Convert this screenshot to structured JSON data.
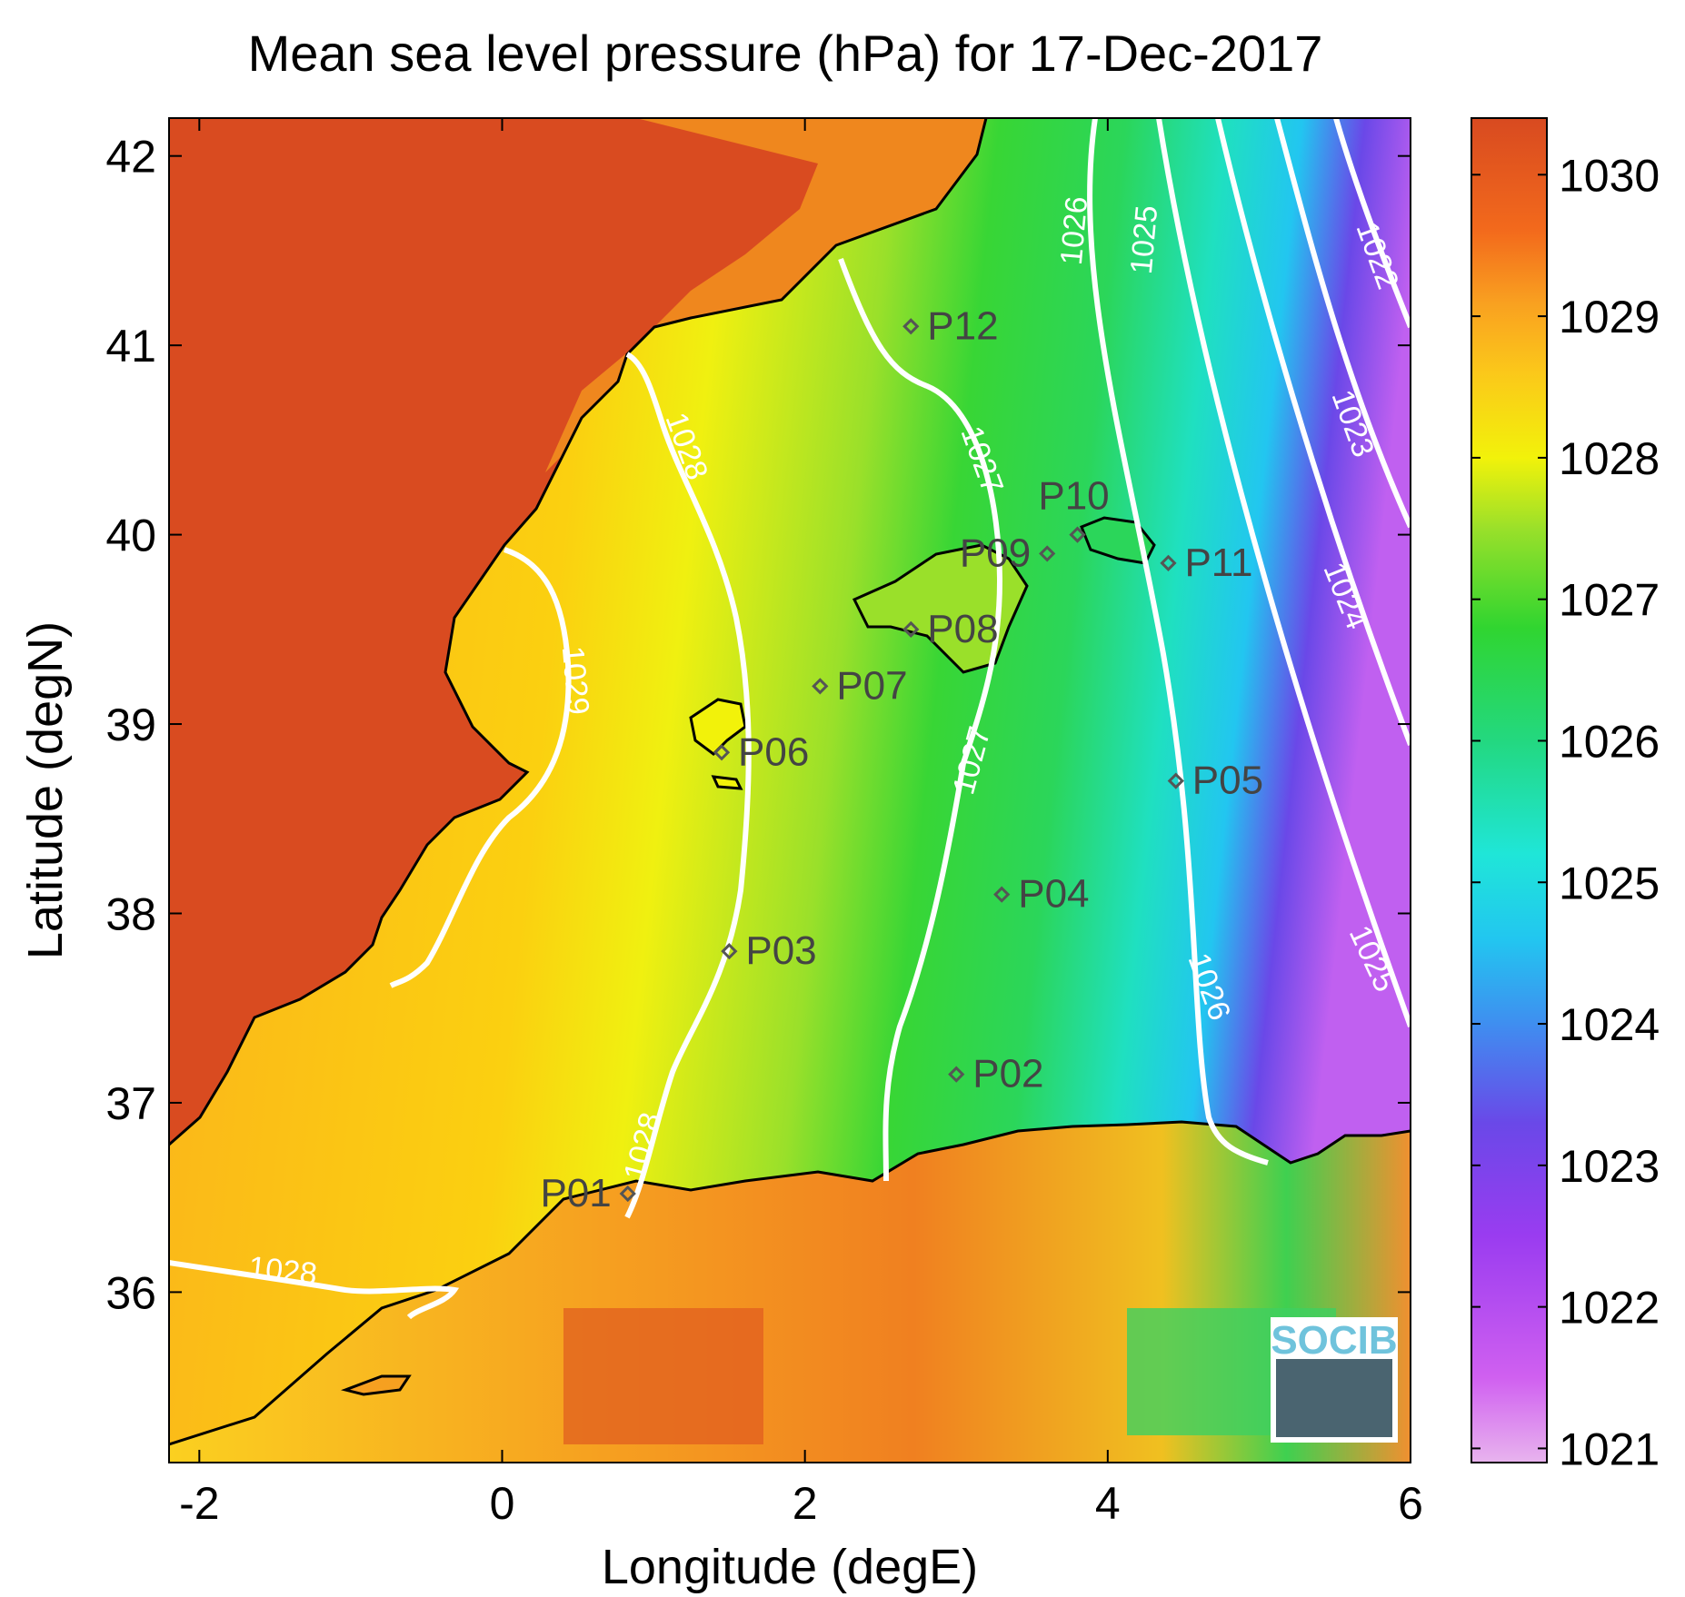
{
  "figure": {
    "title": "Mean sea level pressure (hPa) for 17-Dec-2017",
    "xlabel": "Longitude (degE)",
    "ylabel": "Latitude (degN)",
    "logo_text": "SOCIB"
  },
  "chart_data": {
    "type": "heatmap",
    "title": "Mean sea level pressure (hPa) for 17-Dec-2017",
    "xlabel": "Longitude (degE)",
    "ylabel": "Latitude (degN)",
    "xlim": [
      -2.2,
      6.0
    ],
    "ylim": [
      35.1,
      42.2
    ],
    "x_ticks": [
      -2,
      0,
      2,
      4,
      6
    ],
    "x_tick_labels": [
      "-2",
      "0",
      "2",
      "4",
      "6"
    ],
    "y_ticks": [
      36,
      37,
      38,
      39,
      40,
      41,
      42
    ],
    "y_tick_labels": [
      "36",
      "37",
      "38",
      "39",
      "40",
      "41",
      "42"
    ],
    "colorbar": {
      "range": [
        1020.9,
        1030.4
      ],
      "ticks": [
        1021,
        1022,
        1023,
        1024,
        1025,
        1026,
        1027,
        1028,
        1029,
        1030
      ],
      "tick_labels": [
        "1021",
        "1022",
        "1023",
        "1024",
        "1025",
        "1026",
        "1027",
        "1028",
        "1029",
        "1030"
      ],
      "stops": [
        {
          "value": 1020.9,
          "color": "#e8b4ee"
        },
        {
          "value": 1021.5,
          "color": "#d060f0"
        },
        {
          "value": 1022.5,
          "color": "#9a3cf0"
        },
        {
          "value": 1023.3,
          "color": "#6a48e8"
        },
        {
          "value": 1024.0,
          "color": "#3f8ef0"
        },
        {
          "value": 1024.6,
          "color": "#22c6f0"
        },
        {
          "value": 1025.2,
          "color": "#1fe6d8"
        },
        {
          "value": 1026.0,
          "color": "#23d880"
        },
        {
          "value": 1026.8,
          "color": "#30d530"
        },
        {
          "value": 1027.5,
          "color": "#9ae02a"
        },
        {
          "value": 1028.0,
          "color": "#f2f20a"
        },
        {
          "value": 1028.6,
          "color": "#fbc81a"
        },
        {
          "value": 1029.1,
          "color": "#f9a020"
        },
        {
          "value": 1029.6,
          "color": "#f36a1c"
        },
        {
          "value": 1030.4,
          "color": "#d84a20"
        }
      ]
    },
    "contour_levels": [
      1022,
      1023,
      1024,
      1025,
      1026,
      1027,
      1028,
      1029
    ],
    "contour_labels": [
      "1022",
      "1023",
      "1024",
      "1025",
      "1025",
      "1026",
      "1026",
      "1027",
      "1027",
      "1028",
      "1028",
      "1028",
      "1029"
    ],
    "stations": [
      {
        "name": "P01",
        "lon": 0.83,
        "lat": 36.52
      },
      {
        "name": "P02",
        "lon": 3.0,
        "lat": 37.15
      },
      {
        "name": "P03",
        "lon": 1.5,
        "lat": 37.8
      },
      {
        "name": "P04",
        "lon": 3.3,
        "lat": 38.1
      },
      {
        "name": "P05",
        "lon": 4.45,
        "lat": 38.7
      },
      {
        "name": "P06",
        "lon": 1.45,
        "lat": 38.85
      },
      {
        "name": "P07",
        "lon": 2.1,
        "lat": 39.2
      },
      {
        "name": "P08",
        "lon": 2.7,
        "lat": 39.5
      },
      {
        "name": "P09",
        "lon": 3.6,
        "lat": 39.9
      },
      {
        "name": "P10",
        "lon": 3.8,
        "lat": 40.0
      },
      {
        "name": "P11",
        "lon": 4.4,
        "lat": 39.85
      },
      {
        "name": "P12",
        "lon": 2.7,
        "lat": 41.1
      }
    ],
    "contour_color": "#ffffff",
    "coastline_color": "#000000",
    "station_color": "#555555"
  }
}
